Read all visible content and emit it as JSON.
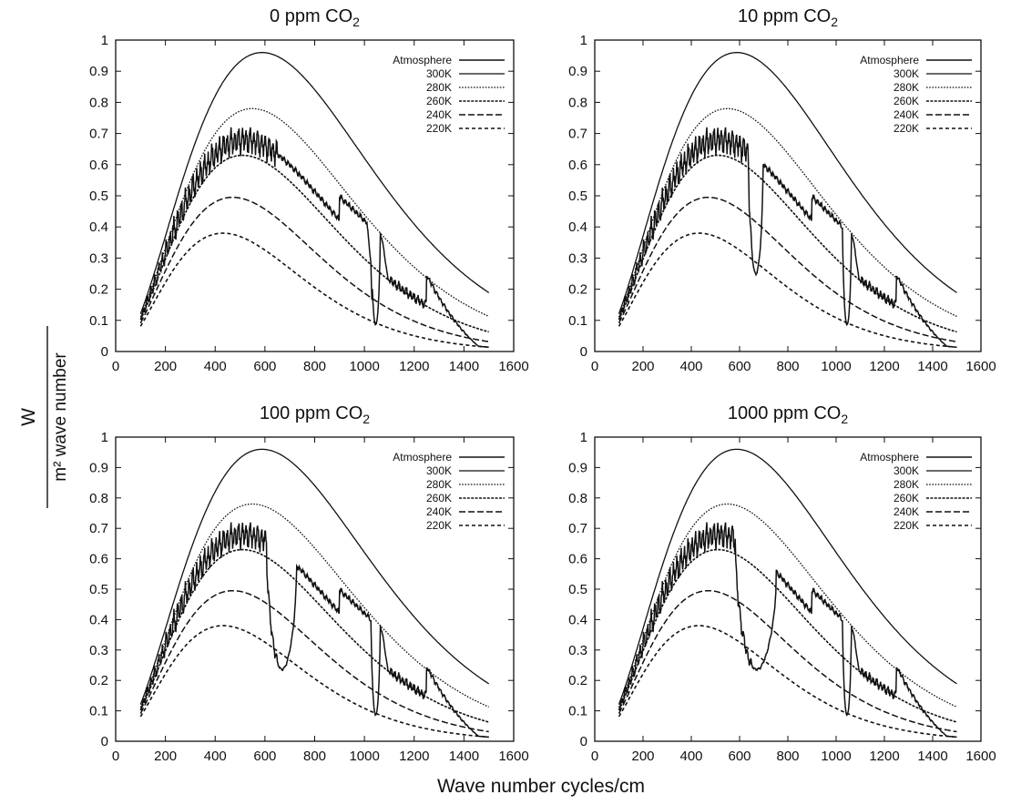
{
  "figure": {
    "ylabel_numerator": "W",
    "ylabel_denominator": "m² wave number",
    "xlabel": "Wave number cycles/cm"
  },
  "chart_data": [
    {
      "type": "line",
      "title": "0 ppm CO₂",
      "title_parts": {
        "prefix": "0 ppm CO",
        "subscript": "2"
      },
      "xlim": [
        0,
        1600
      ],
      "ylim": [
        0,
        1
      ],
      "xticks": [
        0,
        200,
        400,
        600,
        800,
        1000,
        1200,
        1400,
        1600
      ],
      "yticks": [
        0,
        0.1,
        0.2,
        0.3,
        0.4,
        0.5,
        0.6,
        0.7,
        0.8,
        0.9,
        1
      ],
      "legend": [
        "Atmosphere",
        "300K",
        "280K",
        "260K",
        "240K",
        "220K"
      ],
      "legend_position": "top-right",
      "x_range": [
        100,
        1500
      ],
      "series": [
        {
          "name": "300K",
          "kind": "planck",
          "T": 300,
          "peak": 0.96
        },
        {
          "name": "280K",
          "kind": "planck",
          "T": 280,
          "peak": 0.78
        },
        {
          "name": "260K",
          "kind": "planck",
          "T": 260,
          "peak": 0.63
        },
        {
          "name": "240K",
          "kind": "planck",
          "T": 240,
          "peak": 0.495
        },
        {
          "name": "220K",
          "kind": "planck",
          "T": 220,
          "peak": 0.38
        },
        {
          "name": "Atmosphere",
          "kind": "spectrum",
          "base_T": 300,
          "noise_amp": 0.055,
          "dips": [
            {
              "center": 1045,
              "width": 18,
              "depth": 0.78
            }
          ],
          "features": [
            {
              "from": 1010,
              "to": 1030,
              "to_T": 260
            },
            {
              "from": 1070,
              "to": 1100,
              "to_T": 260
            },
            {
              "from": 1250,
              "to": 1500,
              "to_T": 220
            }
          ]
        }
      ]
    },
    {
      "type": "line",
      "title": "10 ppm CO₂",
      "title_parts": {
        "prefix": "10 ppm CO",
        "subscript": "2"
      },
      "xlim": [
        0,
        1600
      ],
      "ylim": [
        0,
        1
      ],
      "xticks": [
        0,
        200,
        400,
        600,
        800,
        1000,
        1200,
        1400,
        1600
      ],
      "yticks": [
        0,
        0.1,
        0.2,
        0.3,
        0.4,
        0.5,
        0.6,
        0.7,
        0.8,
        0.9,
        1
      ],
      "legend": [
        "Atmosphere",
        "300K",
        "280K",
        "260K",
        "240K",
        "220K"
      ],
      "legend_position": "top-right",
      "x_range": [
        100,
        1500
      ],
      "series": [
        {
          "name": "300K",
          "kind": "planck",
          "T": 300,
          "peak": 0.96
        },
        {
          "name": "280K",
          "kind": "planck",
          "T": 280,
          "peak": 0.78
        },
        {
          "name": "260K",
          "kind": "planck",
          "T": 260,
          "peak": 0.63
        },
        {
          "name": "240K",
          "kind": "planck",
          "T": 240,
          "peak": 0.495
        },
        {
          "name": "220K",
          "kind": "planck",
          "T": 220,
          "peak": 0.38
        },
        {
          "name": "Atmosphere",
          "kind": "spectrum",
          "base_T": 300,
          "noise_amp": 0.055,
          "dips": [
            {
              "center": 667,
              "width": 30,
              "depth": 0.6
            },
            {
              "center": 1045,
              "width": 18,
              "depth": 0.78
            }
          ],
          "features": [
            {
              "from": 1070,
              "to": 1100,
              "to_T": 260
            },
            {
              "from": 1250,
              "to": 1500,
              "to_T": 220
            }
          ]
        }
      ]
    },
    {
      "type": "line",
      "title": "100 ppm CO₂",
      "title_parts": {
        "prefix": "100 ppm CO",
        "subscript": "2"
      },
      "xlim": [
        0,
        1600
      ],
      "ylim": [
        0,
        1
      ],
      "xticks": [
        0,
        200,
        400,
        600,
        800,
        1000,
        1200,
        1400,
        1600
      ],
      "yticks": [
        0,
        0.1,
        0.2,
        0.3,
        0.4,
        0.5,
        0.6,
        0.7,
        0.8,
        0.9,
        1
      ],
      "legend": [
        "Atmosphere",
        "300K",
        "280K",
        "260K",
        "240K",
        "220K"
      ],
      "legend_position": "top-right",
      "x_range": [
        100,
        1500
      ],
      "series": [
        {
          "name": "300K",
          "kind": "planck",
          "T": 300,
          "peak": 0.96
        },
        {
          "name": "280K",
          "kind": "planck",
          "T": 280,
          "peak": 0.78
        },
        {
          "name": "260K",
          "kind": "planck",
          "T": 260,
          "peak": 0.63
        },
        {
          "name": "240K",
          "kind": "planck",
          "T": 240,
          "peak": 0.495
        },
        {
          "name": "220K",
          "kind": "planck",
          "T": 220,
          "peak": 0.38
        },
        {
          "name": "Atmosphere",
          "kind": "spectrum",
          "base_T": 300,
          "noise_amp": 0.055,
          "dips": [
            {
              "center": 667,
              "width": 60,
              "depth": 0.62
            },
            {
              "center": 1045,
              "width": 18,
              "depth": 0.78
            }
          ],
          "features": [
            {
              "from": 1070,
              "to": 1100,
              "to_T": 260
            },
            {
              "from": 1250,
              "to": 1500,
              "to_T": 220
            }
          ]
        }
      ]
    },
    {
      "type": "line",
      "title": "1000 ppm CO₂",
      "title_parts": {
        "prefix": "1000 ppm CO",
        "subscript": "2"
      },
      "xlim": [
        0,
        1600
      ],
      "ylim": [
        0,
        1
      ],
      "xticks": [
        0,
        200,
        400,
        600,
        800,
        1000,
        1200,
        1400,
        1600
      ],
      "yticks": [
        0,
        0.1,
        0.2,
        0.3,
        0.4,
        0.5,
        0.6,
        0.7,
        0.8,
        0.9,
        1
      ],
      "legend": [
        "Atmosphere",
        "300K",
        "280K",
        "260K",
        "240K",
        "220K"
      ],
      "legend_position": "top-right",
      "x_range": [
        100,
        1500
      ],
      "series": [
        {
          "name": "300K",
          "kind": "planck",
          "T": 300,
          "peak": 0.96
        },
        {
          "name": "280K",
          "kind": "planck",
          "T": 280,
          "peak": 0.78
        },
        {
          "name": "260K",
          "kind": "planck",
          "T": 260,
          "peak": 0.63
        },
        {
          "name": "240K",
          "kind": "planck",
          "T": 240,
          "peak": 0.495
        },
        {
          "name": "220K",
          "kind": "planck",
          "T": 220,
          "peak": 0.38
        },
        {
          "name": "Atmosphere",
          "kind": "spectrum",
          "base_T": 300,
          "noise_amp": 0.055,
          "dips": [
            {
              "center": 667,
              "width": 85,
              "depth": 0.62
            },
            {
              "center": 1045,
              "width": 18,
              "depth": 0.78
            }
          ],
          "features": [
            {
              "from": 1070,
              "to": 1100,
              "to_T": 260
            },
            {
              "from": 1250,
              "to": 1500,
              "to_T": 220
            }
          ]
        }
      ]
    }
  ]
}
